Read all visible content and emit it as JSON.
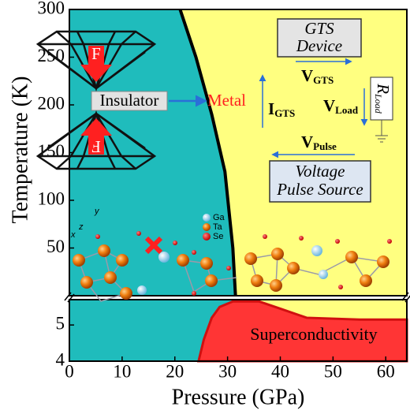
{
  "chart_data": [
    {
      "type": "area",
      "ylabel": "Temperature (K)",
      "xlim": [
        0,
        64
      ],
      "ylim": [
        0,
        300
      ],
      "yticks": [
        50,
        100,
        150,
        200,
        250,
        300
      ],
      "colors": {
        "insulator": "#1fbcbc",
        "metal": "#ffff80"
      },
      "series": [
        {
          "color": "#000000",
          "x": [
            21,
            24,
            27,
            29.5,
            31,
            31.5
          ],
          "values": [
            300,
            250,
            190,
            130,
            50,
            0
          ]
        }
      ],
      "annotations": {
        "insulator": "Insulator",
        "metal": "Metal",
        "force": "F",
        "gts_device": [
          "GTS",
          "Device"
        ],
        "v_gts": {
          "main": "V",
          "sub": "GTS"
        },
        "i_gts": {
          "main": "I",
          "sub": "GTS"
        },
        "v_load": {
          "main": "V",
          "sub": "Load"
        },
        "r_load": {
          "main": "R",
          "sub": "Load"
        },
        "v_pulse": {
          "main": "V",
          "sub": "Pulse"
        },
        "pulse_source": [
          "Voltage",
          "Pulse Source"
        ],
        "atoms": [
          "Ga",
          "Ta",
          "Se"
        ],
        "axes": [
          "x",
          "y",
          "z"
        ]
      }
    },
    {
      "type": "area",
      "xlabel": "Pressure (GPa)",
      "xlim": [
        0,
        64
      ],
      "xticks": [
        0,
        10,
        20,
        30,
        40,
        50,
        60
      ],
      "ylim": [
        4,
        5.7
      ],
      "yticks": [
        4,
        5
      ],
      "series": [
        {
          "name": "Superconductivity",
          "color": "#ff3535",
          "x": [
            24.5,
            25.5,
            27,
            28.5,
            31,
            36,
            40,
            45,
            55,
            64
          ],
          "values": [
            4,
            4.6,
            5.2,
            5.5,
            5.65,
            5.65,
            5.45,
            5.2,
            5.15,
            5.15
          ]
        }
      ]
    }
  ]
}
